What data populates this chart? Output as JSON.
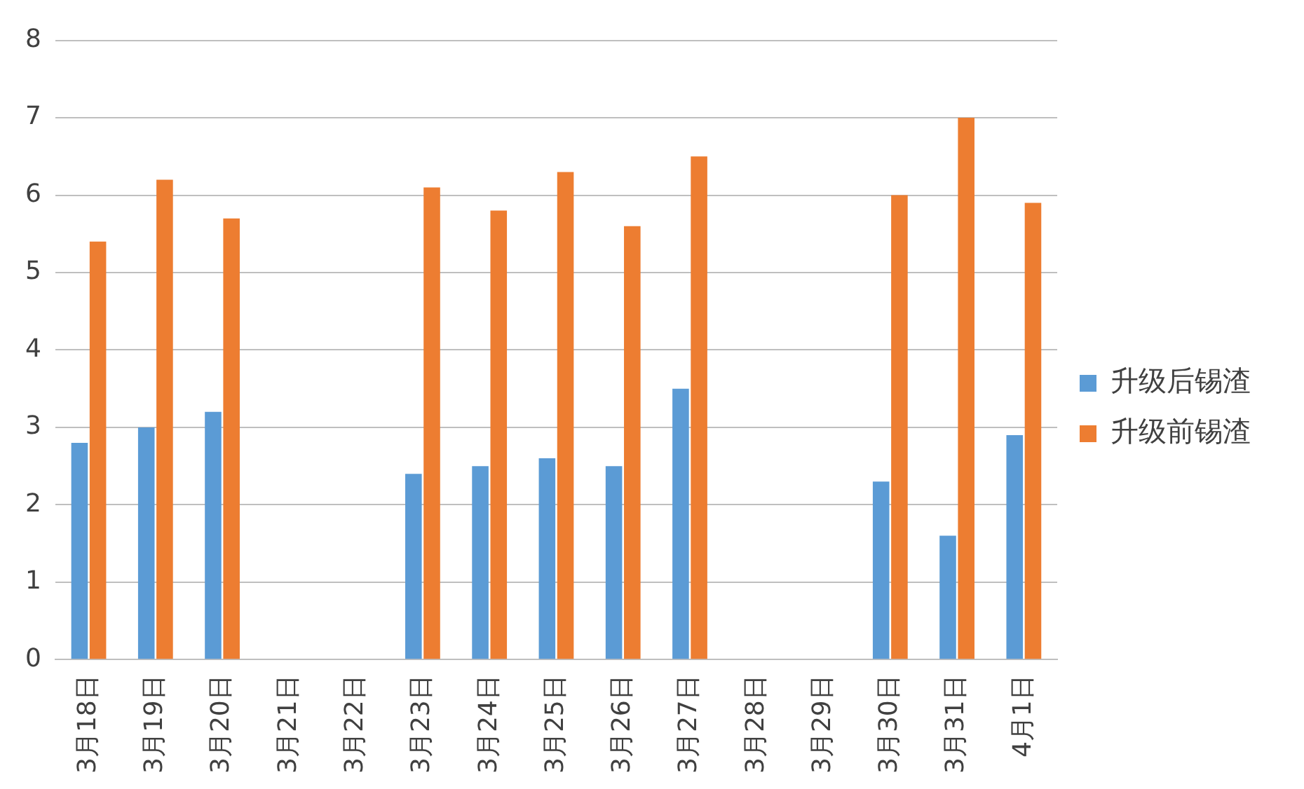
{
  "chart_data": {
    "type": "bar",
    "categories": [
      "3月18日",
      "3月19日",
      "3月20日",
      "3月21日",
      "3月22日",
      "3月23日",
      "3月24日",
      "3月25日",
      "3月26日",
      "3月27日",
      "3月28日",
      "3月29日",
      "3月30日",
      "3月31日",
      "4月1日"
    ],
    "series": [
      {
        "name": "升级后锡渣",
        "color": "#5b9bd5",
        "values": [
          2.8,
          3.0,
          3.2,
          null,
          null,
          2.4,
          2.5,
          2.6,
          2.5,
          3.5,
          null,
          null,
          2.3,
          1.6,
          2.9
        ]
      },
      {
        "name": "升级前锡渣",
        "color": "#ed7d31",
        "values": [
          5.4,
          6.2,
          5.7,
          null,
          null,
          6.1,
          5.8,
          6.3,
          5.6,
          6.5,
          null,
          null,
          6.0,
          7.0,
          5.9
        ]
      }
    ],
    "ylim": [
      0,
      8
    ],
    "yticks": [
      0,
      1,
      2,
      3,
      4,
      5,
      6,
      7,
      8
    ],
    "grid": "y",
    "legend": "right"
  }
}
